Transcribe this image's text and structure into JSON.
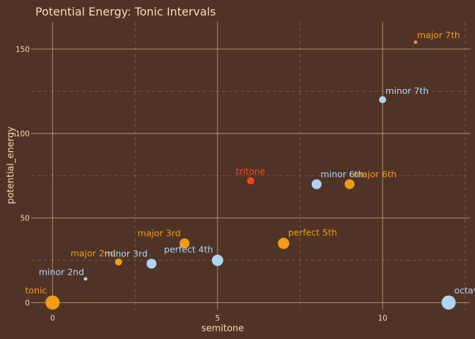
{
  "colors": {
    "background": "#4f3327",
    "text": "#f5deb3",
    "grid": "#d9c08c",
    "orange": "#f39c12",
    "blue": "#aed6f1",
    "red": "#ff4511"
  },
  "chart_data": {
    "type": "scatter",
    "title": "Potential Energy: Tonic Intervals",
    "xlabel": "semitone",
    "ylabel": "potential_energy",
    "xlim": [
      -0.65,
      12.65
    ],
    "ylim": [
      -4,
      166
    ],
    "x_ticks": [
      0,
      5,
      10
    ],
    "y_ticks": [
      0,
      50,
      100,
      150
    ],
    "x_minor_ticks": [
      2.5,
      7.5,
      12.5
    ],
    "y_minor_ticks": [
      25,
      75,
      125
    ],
    "grid": true,
    "legend": "none",
    "points": [
      {
        "label": "tonic",
        "x": 0,
        "y": 0,
        "size": 10,
        "color": "#f39c12",
        "label_side": "left"
      },
      {
        "label": "minor 2nd",
        "x": 1,
        "y": 14,
        "size": 2.5,
        "color": "#aed6f1",
        "label_side": "left"
      },
      {
        "label": "major 2nd",
        "x": 2,
        "y": 24,
        "size": 5,
        "color": "#f39c12",
        "label_side": "left"
      },
      {
        "label": "minor 3rd",
        "x": 3,
        "y": 23,
        "size": 7,
        "color": "#aed6f1",
        "label_side": "left"
      },
      {
        "label": "major 3rd",
        "x": 4,
        "y": 35,
        "size": 7,
        "color": "#f39c12",
        "label_side": "left"
      },
      {
        "label": "perfect 4th",
        "x": 5,
        "y": 25,
        "size": 8,
        "color": "#aed6f1",
        "label_side": "left"
      },
      {
        "label": "tritone",
        "x": 6,
        "y": 72,
        "size": 5,
        "color": "#ff4511",
        "label_side": "center"
      },
      {
        "label": "perfect 5th",
        "x": 7,
        "y": 35,
        "size": 8,
        "color": "#f39c12",
        "label_side": "right"
      },
      {
        "label": "minor 6th",
        "x": 8,
        "y": 70,
        "size": 7,
        "color": "#aed6f1",
        "label_side": "right"
      },
      {
        "label": "major 6th",
        "x": 9,
        "y": 70,
        "size": 7,
        "color": "#f39c12",
        "label_side": "right"
      },
      {
        "label": "minor 7th",
        "x": 10,
        "y": 120,
        "size": 5,
        "color": "#aed6f1",
        "label_side": "right"
      },
      {
        "label": "major 7th",
        "x": 11,
        "y": 154,
        "size": 2.5,
        "color": "#f39c12",
        "label_side": "right"
      },
      {
        "label": "octave",
        "x": 12,
        "y": 0,
        "size": 10,
        "color": "#aed6f1",
        "label_side": "right"
      }
    ]
  }
}
